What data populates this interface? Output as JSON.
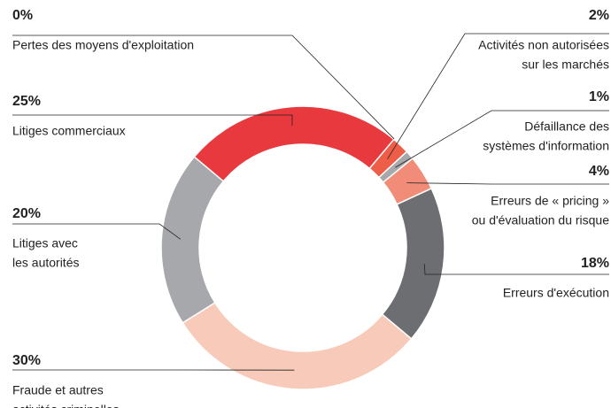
{
  "chart_data": {
    "type": "donut",
    "categories": [
      [
        "Pertes des moyens d'exploitation"
      ],
      [
        "Activités non autorisées",
        "sur les marchés"
      ],
      [
        "Défaillance des",
        "systèmes d'information"
      ],
      [
        "Erreurs de « pricing »",
        "ou d'évaluation du risque"
      ],
      [
        "Erreurs d'exécution"
      ],
      [
        "Fraude et autres",
        "activités criminelles"
      ],
      [
        "Litiges avec",
        "les autorités"
      ],
      [
        "Litiges commerciaux"
      ]
    ],
    "values": [
      0,
      2,
      1,
      4,
      18,
      30,
      20,
      25
    ],
    "value_labels": [
      "0%",
      "2%",
      "1%",
      "4%",
      "18%",
      "30%",
      "20%",
      "25%"
    ],
    "colors": [
      "#e8393f",
      "#ee5d47",
      "#a7a8ab",
      "#f08c78",
      "#6d6e71",
      "#f8cab9",
      "#a7a8ab",
      "#e8393f"
    ]
  }
}
